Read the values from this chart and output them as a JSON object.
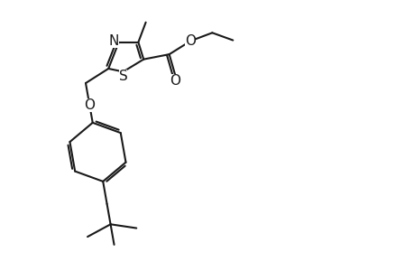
{
  "bg_color": "#ffffff",
  "line_color": "#1a1a1a",
  "line_width": 1.5,
  "font_size": 10,
  "label_color": "#1a1a1a",
  "xlim": [
    0,
    10
  ],
  "ylim": [
    0,
    6.5
  ]
}
